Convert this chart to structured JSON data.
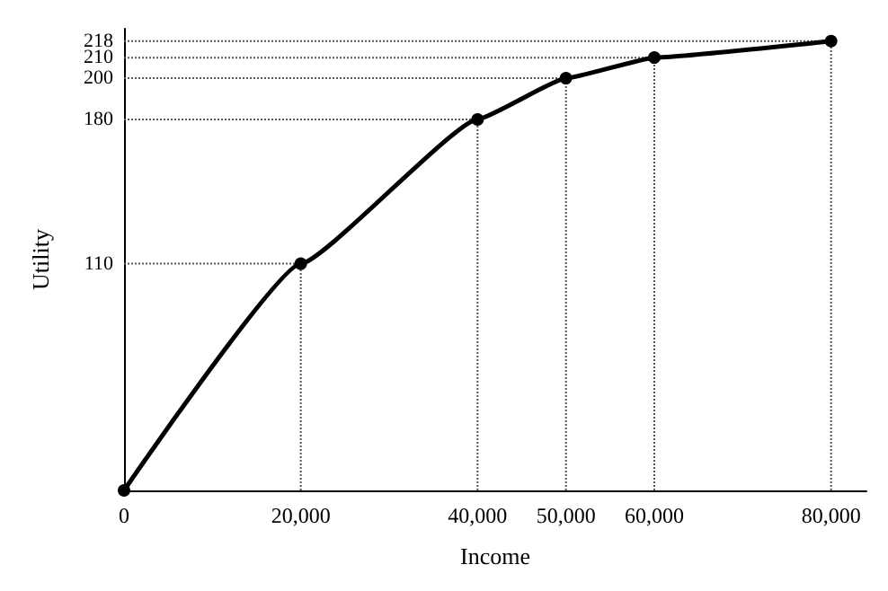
{
  "chart_data": {
    "type": "line",
    "xlabel": "Income",
    "ylabel": "Utility",
    "x": [
      0,
      20000,
      40000,
      50000,
      60000,
      80000
    ],
    "series": [
      {
        "color": "#000000",
        "values": [
          0,
          110,
          180,
          200,
          210,
          218
        ]
      }
    ],
    "xlim": [
      0,
      84000
    ],
    "ylim": [
      0,
      224
    ],
    "xticks": [
      0,
      {
        "value": 20000,
        "label": "20,000"
      },
      {
        "value": 40000,
        "label": "40,000"
      },
      {
        "value": 50000,
        "label": "50,000"
      },
      {
        "value": 60000,
        "label": "60,000"
      },
      {
        "value": 80000,
        "label": "80,000"
      }
    ],
    "yticks": [
      110,
      180,
      200,
      210,
      218
    ],
    "ref_lines": [
      {
        "axis": "x",
        "value": 20000,
        "line_style": "dotted",
        "color": "#555555"
      },
      {
        "axis": "x",
        "value": 40000,
        "line_style": "dotted",
        "color": "#555555"
      },
      {
        "axis": "x",
        "value": 50000,
        "line_style": "dotted",
        "color": "#555555"
      },
      {
        "axis": "x",
        "value": 60000,
        "line_style": "dotted",
        "color": "#555555"
      },
      {
        "axis": "x",
        "value": 80000,
        "line_style": "dotted",
        "color": "#555555"
      },
      {
        "axis": "y",
        "value": 110,
        "line_style": "dotted",
        "color": "#555555"
      },
      {
        "axis": "y",
        "value": 180,
        "line_style": "dotted",
        "color": "#555555"
      },
      {
        "axis": "y",
        "value": 200,
        "line_style": "dotted",
        "color": "#555555"
      },
      {
        "axis": "y",
        "value": 210,
        "line_style": "dotted",
        "color": "#555555"
      },
      {
        "axis": "y",
        "value": 218,
        "line_style": "dotted",
        "color": "#555555"
      }
    ],
    "marker": "circle",
    "line_style": "solid",
    "grid": false
  }
}
